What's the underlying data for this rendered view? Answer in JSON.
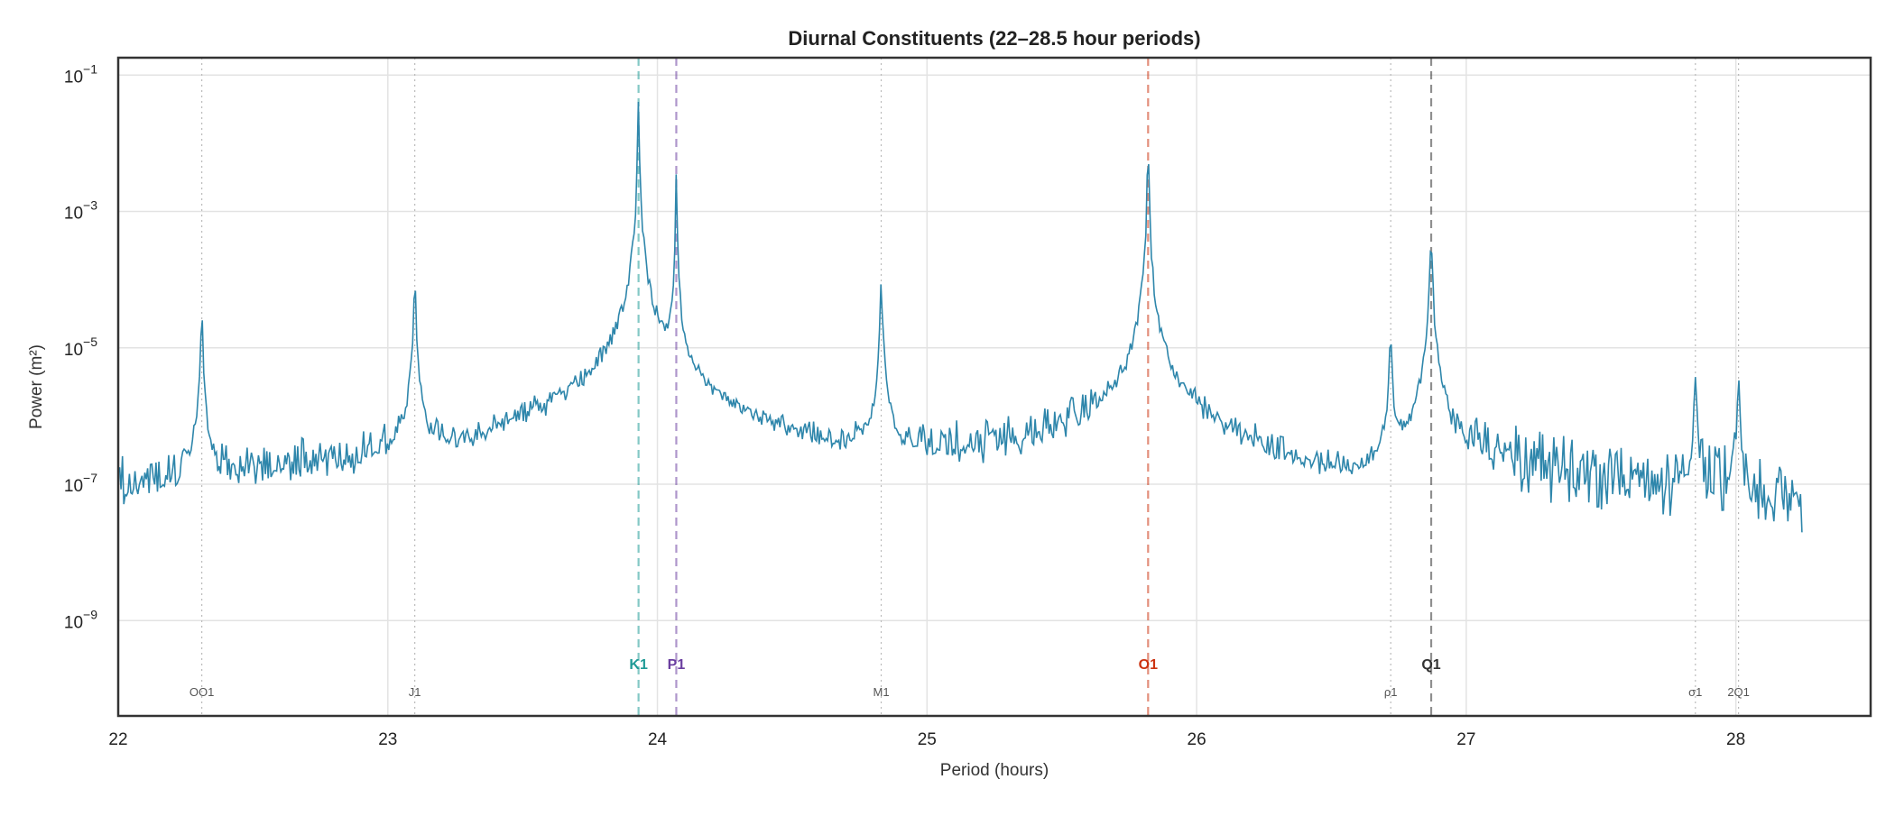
{
  "chart_data": {
    "type": "line",
    "title": "Diurnal Constituents (22–28.5 hour periods)",
    "xlabel": "Period (hours)",
    "ylabel": "Power (m²)",
    "xlim": [
      22,
      28.5
    ],
    "ylim": [
      4e-11,
      0.18
    ],
    "yscale": "log",
    "grid": true,
    "x_ticks": [
      "22",
      "23",
      "24",
      "25",
      "26",
      "27",
      "28"
    ],
    "y_ticks": [
      {
        "base": "10",
        "exp": "−1",
        "value": 0.1
      },
      {
        "base": "10",
        "exp": "−3",
        "value": 0.001
      },
      {
        "base": "10",
        "exp": "−5",
        "value": 1e-05
      },
      {
        "base": "10",
        "exp": "−7",
        "value": 1e-07
      },
      {
        "base": "10",
        "exp": "−9",
        "value": 1e-09
      }
    ],
    "line_color": "#2e86ab",
    "data_range": [
      22.0,
      28.25
    ],
    "baseline_log10": [
      [
        22.0,
        -7.2
      ],
      [
        22.3,
        -7.2
      ],
      [
        22.5,
        -7.0
      ],
      [
        22.8,
        -7.0
      ],
      [
        23.0,
        -6.8
      ],
      [
        23.3,
        -7.0
      ],
      [
        23.5,
        -6.7
      ],
      [
        23.7,
        -6.4
      ],
      [
        24.3,
        -6.8
      ],
      [
        24.5,
        -7.0
      ],
      [
        24.8,
        -6.9
      ],
      [
        25.2,
        -6.7
      ],
      [
        25.5,
        -6.5
      ],
      [
        25.7,
        -6.2
      ],
      [
        26.0,
        -6.5
      ],
      [
        26.3,
        -7.0
      ],
      [
        26.5,
        -7.3
      ],
      [
        26.6,
        -7.5
      ],
      [
        26.75,
        -6.9
      ],
      [
        27.0,
        -6.6
      ],
      [
        27.3,
        -6.8
      ],
      [
        27.6,
        -7.0
      ],
      [
        28.0,
        -7.0
      ],
      [
        28.25,
        -7.5
      ]
    ],
    "peaks": [
      {
        "period": 22.31,
        "power": 3.5e-05
      },
      {
        "period": 23.1,
        "power": 0.00011
      },
      {
        "period": 23.93,
        "power": 0.07
      },
      {
        "period": 24.07,
        "power": 0.005
      },
      {
        "period": 24.83,
        "power": 0.00011
      },
      {
        "period": 25.82,
        "power": 0.02
      },
      {
        "period": 26.72,
        "power": 2e-05
      },
      {
        "period": 26.87,
        "power": 0.0005
      },
      {
        "period": 27.85,
        "power": 5e-06
      },
      {
        "period": 28.01,
        "power": 4e-06
      }
    ],
    "major_constituents": [
      {
        "label": "K1",
        "period": 23.93,
        "color": "#1f9a96"
      },
      {
        "label": "P1",
        "period": 24.07,
        "color": "#6b3fa0"
      },
      {
        "label": "O1",
        "period": 25.82,
        "color": "#cc3311"
      },
      {
        "label": "Q1",
        "period": 26.87,
        "color": "#333333"
      }
    ],
    "minor_constituents": [
      {
        "label": "OO1",
        "period": 22.31
      },
      {
        "label": "J1",
        "period": 23.1
      },
      {
        "label": "M1",
        "period": 24.83
      },
      {
        "label": "ρ1",
        "period": 26.72
      },
      {
        "label": "σ1",
        "period": 27.85
      },
      {
        "label": "2Q1",
        "period": 28.01
      }
    ]
  }
}
